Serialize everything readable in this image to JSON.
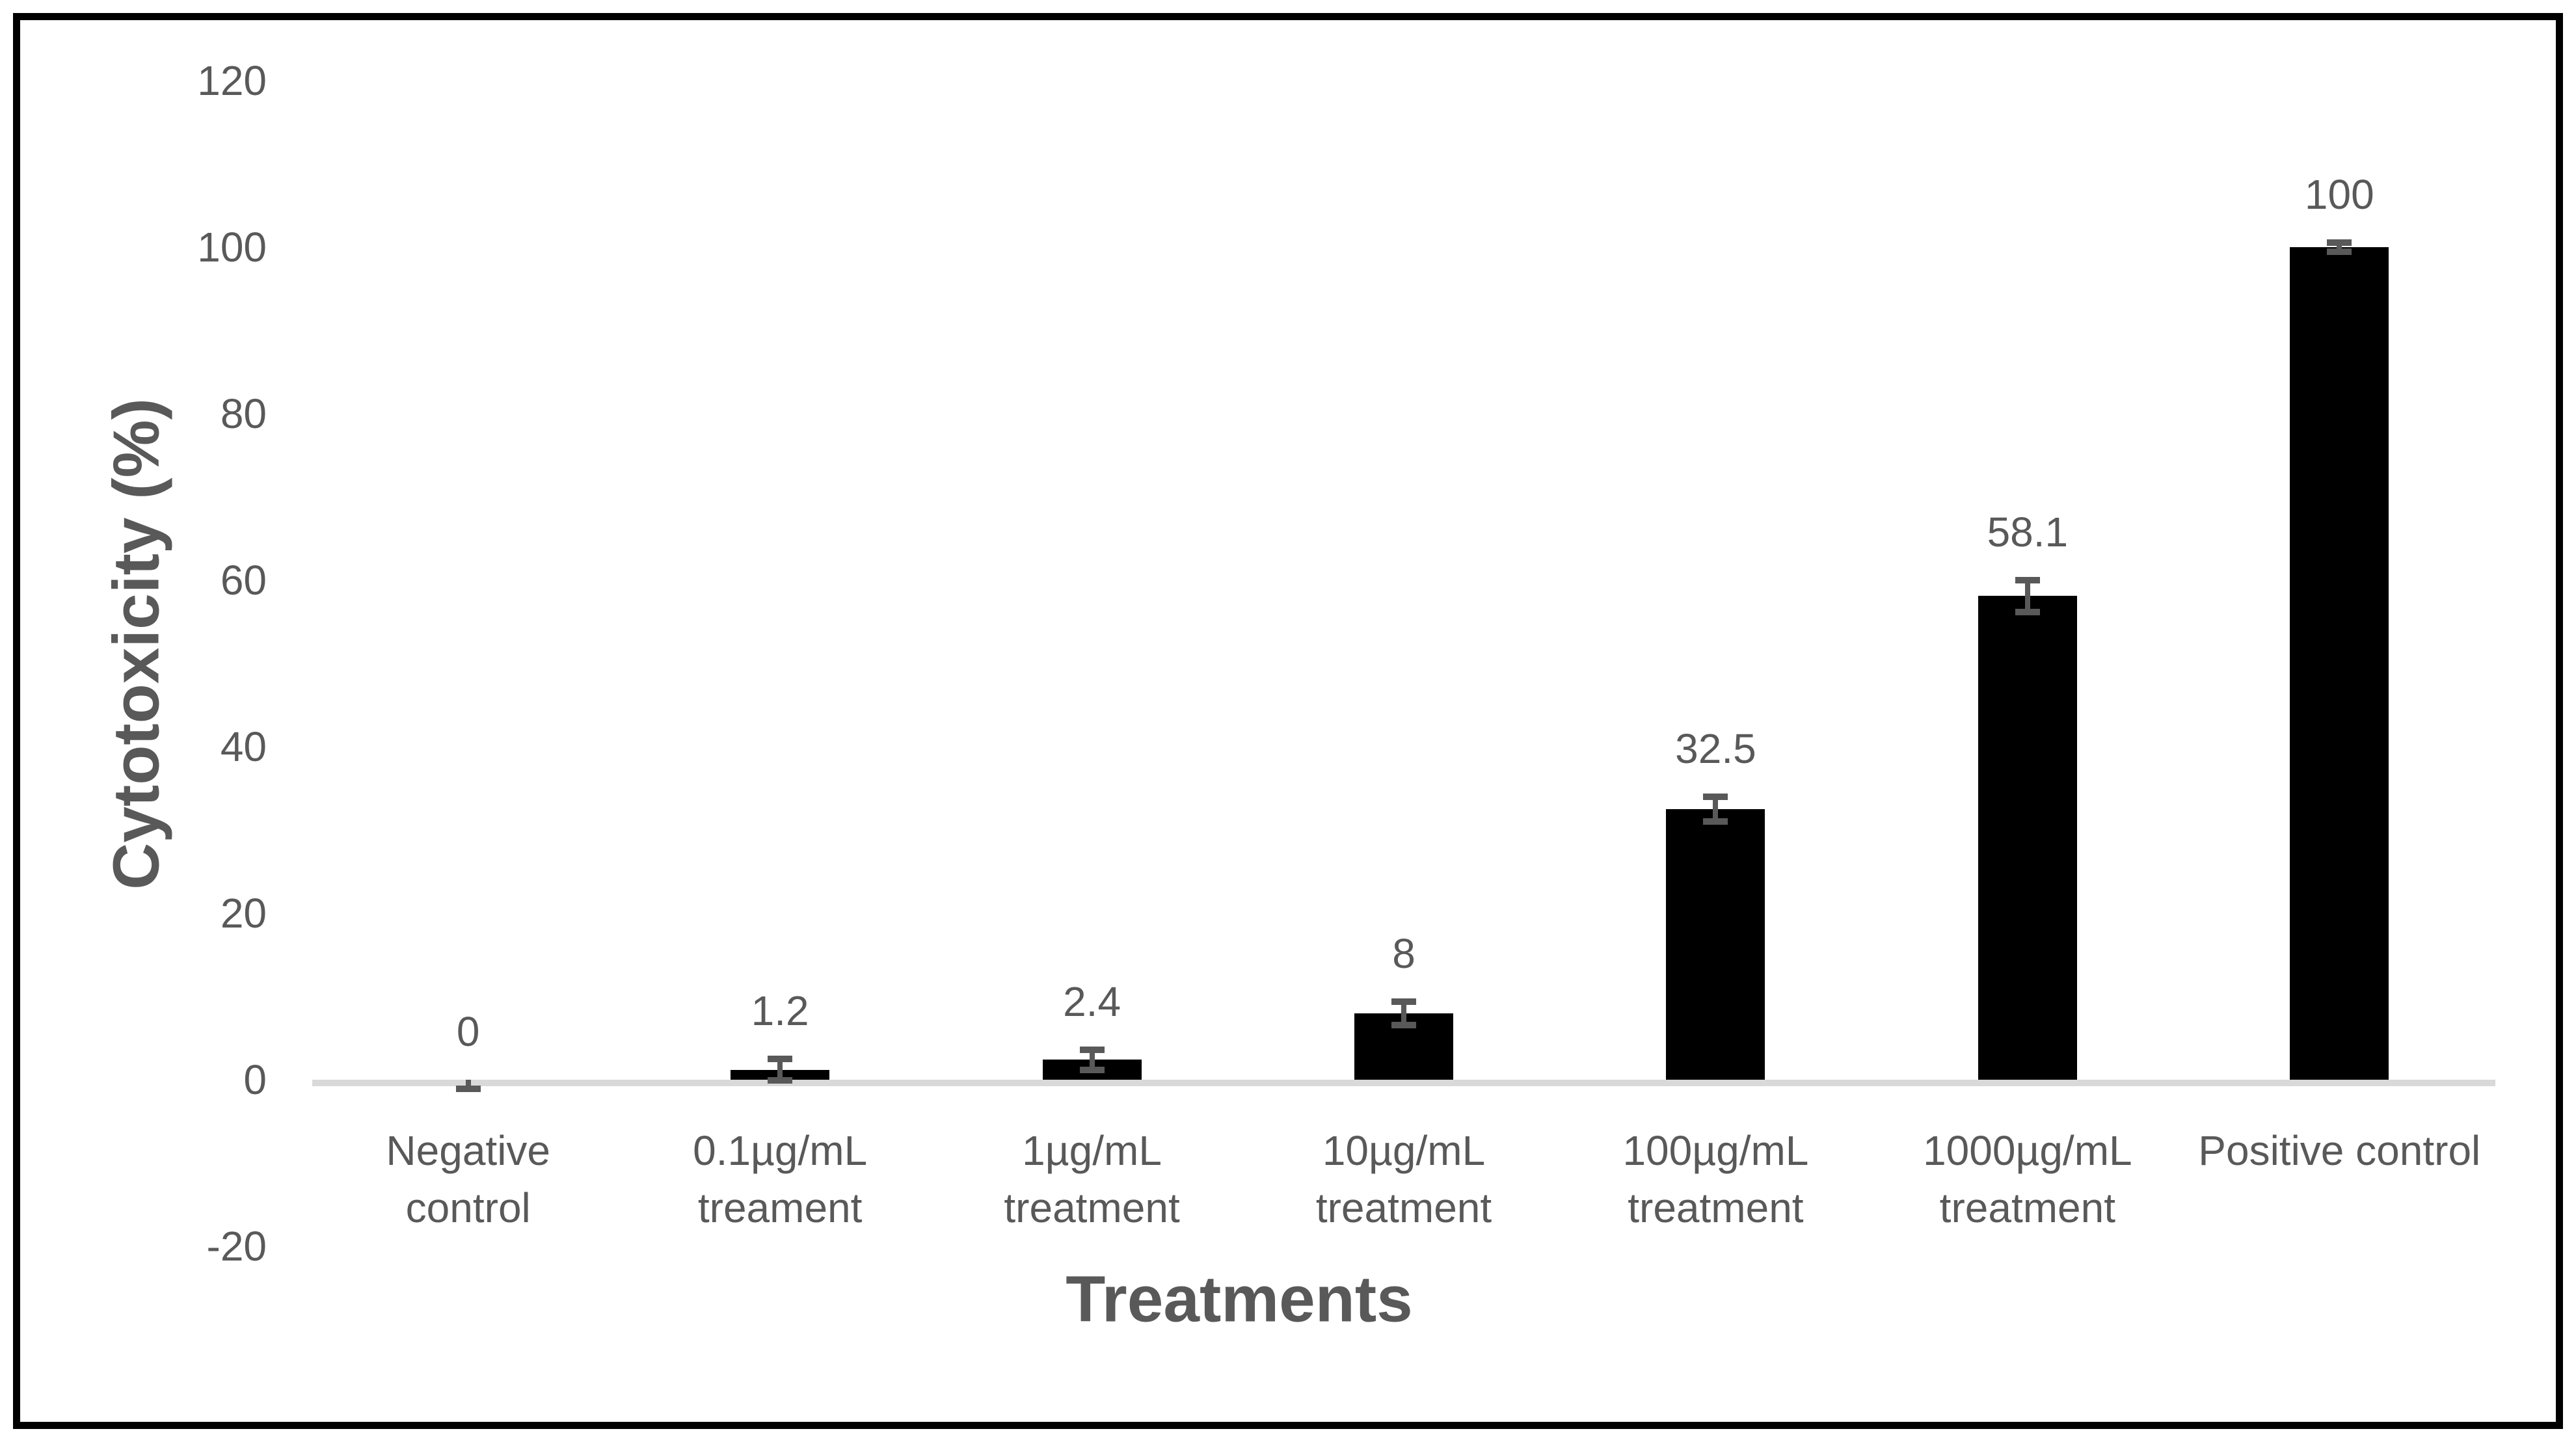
{
  "chart_data": {
    "type": "bar",
    "title": "",
    "xlabel": "Treatments",
    "ylabel": "Cytotoxicity (%)",
    "categories": [
      "Negative control",
      "0.1µg/mL treament",
      "1µg/mL treatment",
      "10µg/mL treatment",
      "100µg/mL treatment",
      "1000µg/mL treatment",
      "Positive control"
    ],
    "category_lines": [
      [
        "Negative",
        "control"
      ],
      [
        "0.1µg/mL",
        "treament"
      ],
      [
        "1µg/mL",
        "treatment"
      ],
      [
        "10µg/mL",
        "treatment"
      ],
      [
        "100µg/mL",
        "treatment"
      ],
      [
        "1000µg/mL",
        "treatment"
      ],
      [
        "Positive control"
      ]
    ],
    "values": [
      0,
      1.2,
      2.4,
      8,
      32.5,
      58.1,
      100
    ],
    "data_labels": [
      "0",
      "1.2",
      "2.4",
      "8",
      "32.5",
      "58.1",
      "100"
    ],
    "error_bars": [
      0.6,
      1.3,
      1.2,
      1.4,
      1.5,
      1.9,
      0.55
    ],
    "ylim": [
      -20,
      120
    ],
    "ytick_labels": [
      "120",
      "100",
      "80",
      "60",
      "40",
      "20",
      "0",
      "-20"
    ],
    "ytick_interval": 20,
    "grid": false,
    "legend": false,
    "colors": {
      "bar": "#000000",
      "error_bar": "#595959",
      "axis_line": "#d9d9d9",
      "text": "#595959",
      "frame": "#000000",
      "background": "#ffffff"
    }
  }
}
